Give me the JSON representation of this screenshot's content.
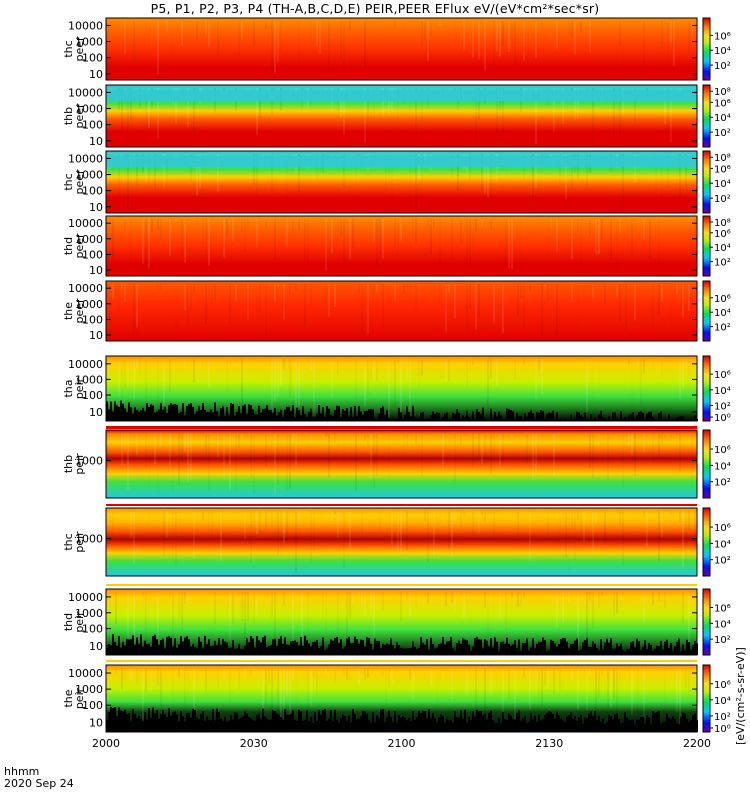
{
  "title": "P5, P1, P2, P3, P4 (TH-A,B,C,D,E) PEIR,PEER EFlux eV/(eV*cm²*sec*sr)",
  "xaxis": {
    "unit": "hhmm",
    "date": "2020 Sep 24",
    "ticks": [
      "2000",
      "2030",
      "2100",
      "2130",
      "2200"
    ]
  },
  "colorbar_label": "[eV/(cm²-s-sr-eV)]",
  "chart_data": {
    "type": "heatmap",
    "title": "P5, P1, P2, P3, P4 (TH-A,B,C,D,E) PEIR,PEER EFlux eV/(eV*cm²*sec*sr)",
    "x_range": [
      "2000",
      "2200"
    ],
    "x_ticks": [
      "2000",
      "2030",
      "2100",
      "2130",
      "2200"
    ],
    "x_unit": "hhmm",
    "date": "2020 Sep 24",
    "y_scale": "log",
    "colorbar_scale": "log",
    "colormap": "rainbow (black/blue/cyan/green/yellow/orange/red)",
    "panels": [
      {
        "label_top": "thc",
        "label_bottom": "peer",
        "y_ticks": [
          "10000",
          "1000",
          "100",
          "10"
        ],
        "cbar_ticks": [
          "10⁶",
          "10⁴",
          "10²"
        ]
      },
      {
        "label_top": "thb",
        "label_bottom": "peer",
        "y_ticks": [
          "10000",
          "1000",
          "100",
          "10"
        ],
        "cbar_ticks": [
          "10⁸",
          "10⁶",
          "10⁴",
          "10²"
        ]
      },
      {
        "label_top": "thc",
        "label_bottom": "peer",
        "y_ticks": [
          "10000",
          "1000",
          "100",
          "10"
        ],
        "cbar_ticks": [
          "10⁸",
          "10⁶",
          "10⁴",
          "10²"
        ]
      },
      {
        "label_top": "thd",
        "label_bottom": "peer",
        "y_ticks": [
          "10000",
          "1000",
          "100",
          "10"
        ],
        "cbar_ticks": [
          "10⁸",
          "10⁶",
          "10⁴",
          "10²"
        ]
      },
      {
        "label_top": "the",
        "label_bottom": "peer",
        "y_ticks": [
          "10000",
          "1000",
          "100",
          "10"
        ],
        "cbar_ticks": [
          "10⁶",
          "10⁴",
          "10²"
        ]
      },
      {
        "label_top": "tha",
        "label_bottom": "peir",
        "y_ticks": [
          "10000",
          "1000",
          "100",
          "10"
        ],
        "cbar_ticks": [
          "10⁶",
          "10⁴",
          "10²",
          "10⁰"
        ]
      },
      {
        "label_top": "thb",
        "label_bottom": "peir",
        "y_ticks": [
          "1000"
        ],
        "cbar_ticks": [
          "10⁶",
          "10⁴",
          "10²"
        ]
      },
      {
        "label_top": "thc",
        "label_bottom": "peir",
        "y_ticks": [
          "1000"
        ],
        "cbar_ticks": [
          "10⁶",
          "10⁴",
          "10²"
        ]
      },
      {
        "label_top": "thd",
        "label_bottom": "peir",
        "y_ticks": [
          "10000",
          "1000",
          "100",
          "10"
        ],
        "cbar_ticks": [
          "10⁶",
          "10⁴",
          "10²"
        ]
      },
      {
        "label_top": "the",
        "label_bottom": "peir",
        "y_ticks": [
          "10000",
          "1000",
          "100",
          "10"
        ],
        "cbar_ticks": [
          "10⁶",
          "10⁴",
          "10²",
          "10⁰"
        ]
      }
    ]
  }
}
